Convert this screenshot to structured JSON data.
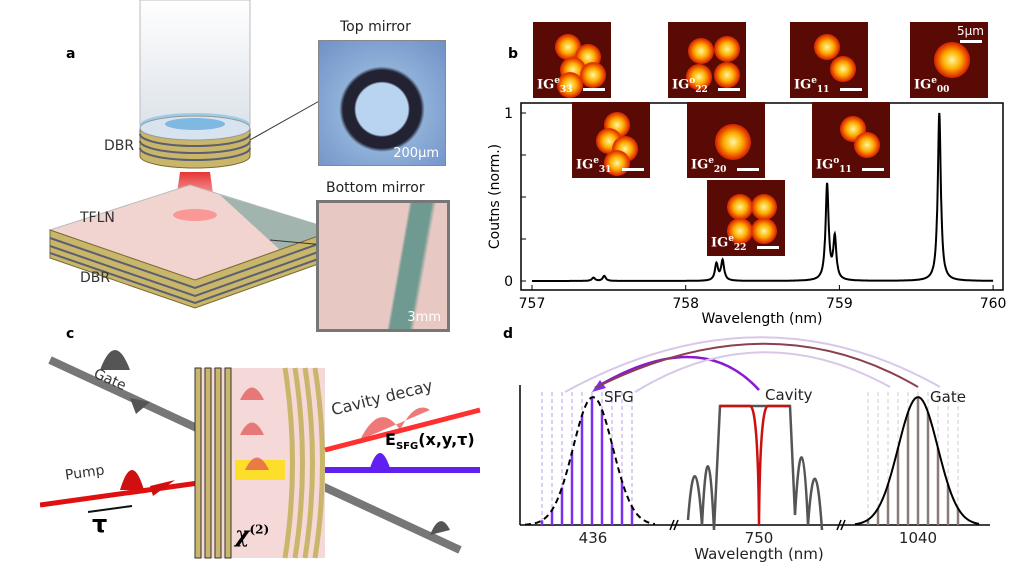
{
  "panel_a": {
    "label": "a",
    "top_mirror": "Top mirror",
    "top_scale": "200μm",
    "bottom_mirror": "Bottom mirror",
    "bottom_scale": "3mm",
    "dbr_top": "DBR",
    "tfln": "TFLN",
    "dbr_bottom": "DBR"
  },
  "panel_b": {
    "label": "b",
    "scale": "5μm",
    "modes": [
      {
        "base": "IG",
        "sup": "e",
        "sub": "33"
      },
      {
        "base": "IG",
        "sup": "o",
        "sub": "22"
      },
      {
        "base": "IG",
        "sup": "e",
        "sub": "11"
      },
      {
        "base": "IG",
        "sup": "e",
        "sub": "00"
      },
      {
        "base": "IG",
        "sup": "e",
        "sub": "31"
      },
      {
        "base": "IG",
        "sup": "e",
        "sub": "20"
      },
      {
        "base": "IG",
        "sup": "o",
        "sub": "11"
      },
      {
        "base": "IG",
        "sup": "e",
        "sub": "22"
      }
    ]
  },
  "chart_data": {
    "type": "line",
    "xlabel": "Wavelength (nm)",
    "ylabel": "Coutns (norm.)",
    "xlim": [
      757,
      760
    ],
    "ylim": [
      0,
      1.05
    ],
    "xticks": [
      "757",
      "758",
      "759",
      "760"
    ],
    "yticks": [
      "0",
      "1"
    ],
    "peaks": [
      {
        "x": 757.4,
        "y": 0.02
      },
      {
        "x": 757.47,
        "y": 0.03
      },
      {
        "x": 758.2,
        "y": 0.1
      },
      {
        "x": 758.24,
        "y": 0.12
      },
      {
        "x": 758.92,
        "y": 0.57
      },
      {
        "x": 758.97,
        "y": 0.25
      },
      {
        "x": 759.65,
        "y": 1.0
      }
    ]
  },
  "panel_c": {
    "label": "c",
    "gate": "Gate",
    "cavity_decay": "Cavity decay",
    "pump": "Pump",
    "tau": "τ",
    "chi": "χ",
    "chi_sup": "(2)",
    "esfg": "E",
    "esfg_sub": "SFG",
    "esfg_args": "(x,y,τ)"
  },
  "panel_d": {
    "label": "d",
    "sfg": "SFG",
    "cavity": "Cavity",
    "gate": "Gate",
    "ticks": [
      "436",
      "750",
      "1040"
    ],
    "xlabel": "Wavelength (nm)",
    "colors": {
      "sfg": "#7b2ff0",
      "cavity": "#cc1010",
      "gate": "#555555"
    }
  }
}
